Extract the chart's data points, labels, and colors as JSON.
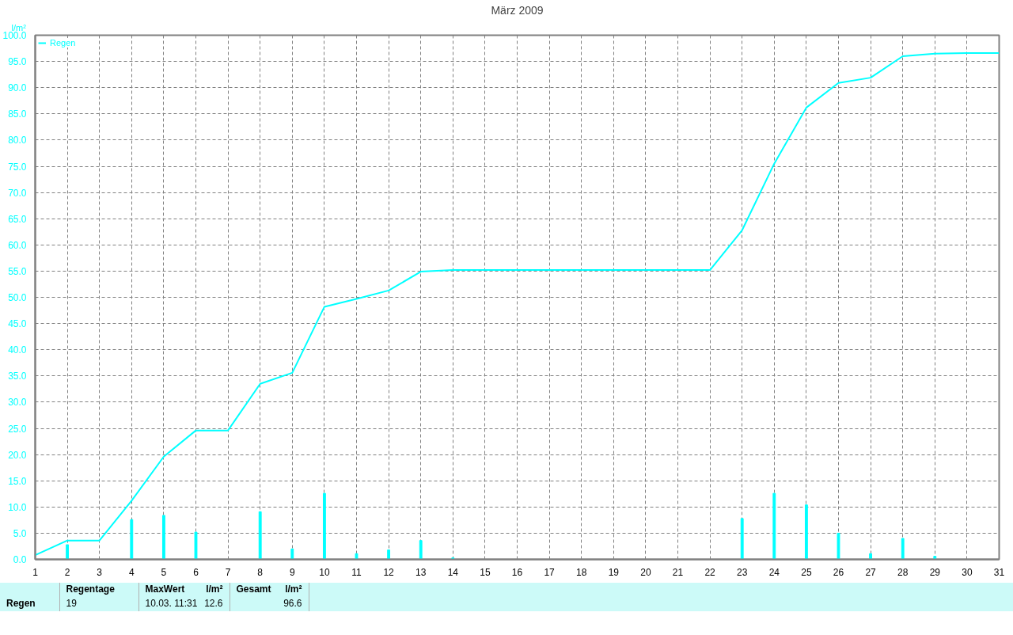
{
  "chart_data": {
    "type": "line",
    "title": "März 2009",
    "ylabel": "l/m²",
    "x": [
      1,
      2,
      3,
      4,
      5,
      6,
      7,
      8,
      9,
      10,
      11,
      12,
      13,
      14,
      15,
      16,
      17,
      18,
      19,
      20,
      21,
      22,
      23,
      24,
      25,
      26,
      27,
      28,
      29,
      30,
      31
    ],
    "series": [
      {
        "name": "Regen",
        "color": "#00ffff",
        "values": [
          0.8,
          3.6,
          3.6,
          11.2,
          19.6,
          24.6,
          24.6,
          33.5,
          35.6,
          48.2,
          49.7,
          51.3,
          54.9,
          55.2,
          55.2,
          55.2,
          55.2,
          55.2,
          55.2,
          55.2,
          55.2,
          55.2,
          62.8,
          75.5,
          86.2,
          90.9,
          91.9,
          96.0,
          96.5,
          96.6,
          96.6
        ]
      },
      {
        "type": "bar",
        "color": "#00ffff",
        "x": [
          2,
          4,
          5,
          6,
          8,
          9,
          10,
          11,
          12,
          13,
          14,
          23,
          24,
          25,
          26,
          27,
          28,
          29
        ],
        "values": [
          2.8,
          7.6,
          8.4,
          5.2,
          9.1,
          2.0,
          12.6,
          1.1,
          1.8,
          3.6,
          0.3,
          7.8,
          12.6,
          10.4,
          5.0,
          1.1,
          4.0,
          0.6
        ]
      }
    ],
    "xlim": [
      1,
      31
    ],
    "xticks": [
      1,
      2,
      3,
      4,
      5,
      6,
      7,
      8,
      9,
      10,
      11,
      12,
      13,
      14,
      15,
      16,
      17,
      18,
      19,
      20,
      21,
      22,
      23,
      24,
      25,
      26,
      27,
      28,
      29,
      30,
      31
    ],
    "ylim": [
      0,
      100
    ],
    "yticks": [
      {
        "value": 0,
        "label": "0.0"
      },
      {
        "value": 5,
        "label": "5.0"
      },
      {
        "value": 10,
        "label": "10.0"
      },
      {
        "value": 15,
        "label": "15.0"
      },
      {
        "value": 20,
        "label": "20.0"
      },
      {
        "value": 25,
        "label": "25.0"
      },
      {
        "value": 30,
        "label": "30.0"
      },
      {
        "value": 35,
        "label": "35.0"
      },
      {
        "value": 40,
        "label": "40.0"
      },
      {
        "value": 45,
        "label": "45.0"
      },
      {
        "value": 50,
        "label": "50.0"
      },
      {
        "value": 55,
        "label": "55.0"
      },
      {
        "value": 60,
        "label": "60.0"
      },
      {
        "value": 65,
        "label": "65.0"
      },
      {
        "value": 70,
        "label": "70.0"
      },
      {
        "value": 75,
        "label": "75.0"
      },
      {
        "value": 80,
        "label": "80.0"
      },
      {
        "value": 85,
        "label": "85.0"
      },
      {
        "value": 90,
        "label": "90.0"
      },
      {
        "value": 95,
        "label": "95.0"
      },
      {
        "value": 100,
        "label": "100.0"
      }
    ],
    "grid": true,
    "legend": "top left",
    "marker": "none",
    "annotations": [
      "Regen",
      "Regentage",
      "19",
      "MaxWert",
      "l/m²",
      "10.03.  11:31",
      "12.6",
      "Gesamt",
      "l/m²",
      "96.6"
    ]
  }
}
